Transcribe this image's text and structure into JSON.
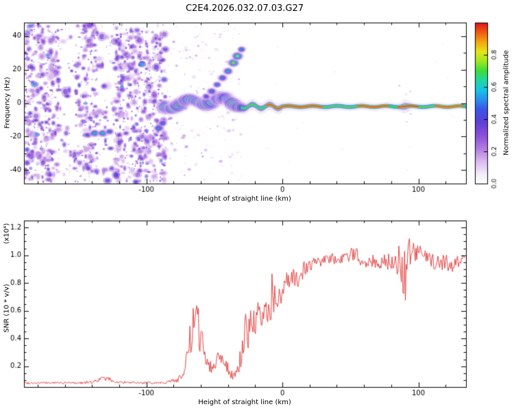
{
  "figure": {
    "title": "C2E4.2026.032.07.03.G27"
  },
  "chart_data": [
    {
      "type": "heatmap",
      "panel": "spectrogram",
      "xlabel": "Height of straight line (km)",
      "ylabel": "Frequency (Hz)",
      "xlim": [
        -190,
        135
      ],
      "ylim": [
        -48,
        48
      ],
      "xticks": [
        -100,
        0,
        100
      ],
      "xtick_minor_step": 20,
      "yticks": [
        -40,
        -20,
        0,
        20,
        40
      ],
      "ytick_minor_step": 10,
      "colorbar": {
        "label": "Normalized spectral amplitude",
        "tick_values": [
          0,
          0.2,
          0.4,
          0.6,
          0.8
        ],
        "vmin": 0,
        "vmax": 1
      },
      "colormap_stops": [
        [
          0.0,
          "#ffffff"
        ],
        [
          0.06,
          "#f3ecfa"
        ],
        [
          0.14,
          "#d9b8ef"
        ],
        [
          0.22,
          "#b07ae0"
        ],
        [
          0.3,
          "#8a4fd8"
        ],
        [
          0.38,
          "#5f3fd8"
        ],
        [
          0.46,
          "#3a55e8"
        ],
        [
          0.52,
          "#2a8df0"
        ],
        [
          0.58,
          "#15c4e8"
        ],
        [
          0.64,
          "#1fd8a0"
        ],
        [
          0.7,
          "#3ade3a"
        ],
        [
          0.76,
          "#a0e81e"
        ],
        [
          0.82,
          "#e6e414"
        ],
        [
          0.88,
          "#f5a410"
        ],
        [
          0.94,
          "#ee5b10"
        ],
        [
          1.0,
          "#e0101c"
        ]
      ],
      "features": {
        "noise_field": {
          "x_range": [
            -190,
            -86
          ],
          "count": 1600,
          "light_bands": [
            [
              -164,
              -152
            ],
            [
              -136,
              -123
            ]
          ]
        },
        "sparse_field": {
          "x_range": [
            -86,
            -30
          ],
          "count": 180
        },
        "far_sparse": {
          "x_range": [
            -30,
            135
          ],
          "count": 28
        },
        "low_trail_blobs": [
          [
            -143,
            -19,
            0.5,
            3.0
          ],
          [
            -138,
            -18,
            0.68,
            3.5
          ],
          [
            -132,
            -18,
            0.7,
            3.5
          ],
          [
            -127,
            -17,
            0.55,
            3.0
          ],
          [
            -120,
            -19,
            0.45,
            2.5
          ],
          [
            -115,
            -18,
            0.4,
            2.5
          ],
          [
            -91,
            -15,
            0.6,
            3.5
          ],
          [
            -88,
            -12,
            0.55,
            3.0
          ]
        ],
        "diagonal_blobs": [
          [
            -56,
            4,
            0.5,
            3.0
          ],
          [
            -52,
            7,
            0.55,
            3.5
          ],
          [
            -48,
            11,
            0.6,
            3.0
          ],
          [
            -44,
            15,
            0.55,
            3.5
          ],
          [
            -40,
            19,
            0.65,
            3.5
          ],
          [
            -36,
            24,
            0.85,
            4.0
          ],
          [
            -33,
            28,
            0.8,
            4.0
          ],
          [
            -30,
            32,
            0.6,
            3.0
          ]
        ],
        "main_chain": {
          "x_range": [
            -86,
            -30
          ],
          "step": 2.0,
          "wiggle": [
            2.2,
            1.5
          ],
          "core_range": [
            0.55,
            0.95
          ],
          "size_range": [
            3.5,
            6.5
          ]
        },
        "signal_line": {
          "x_range": [
            -30,
            135
          ],
          "freq": -2,
          "core_segments": [
            [
              -30,
              -12,
              0.72
            ],
            [
              -12,
              30,
              0.95
            ],
            [
              30,
              55,
              0.72
            ],
            [
              55,
              78,
              0.95
            ],
            [
              78,
              85,
              0.7
            ],
            [
              85,
              100,
              0.96
            ],
            [
              100,
              112,
              0.72
            ],
            [
              112,
              133,
              0.94
            ],
            [
              133,
              135,
              0.7
            ]
          ],
          "bump_center": 90,
          "bump_halo": 5
        },
        "bump_dots": {
          "center": 90,
          "spread": 5,
          "count": 14
        }
      }
    },
    {
      "type": "line",
      "panel": "snr",
      "series": [
        {
          "name": "SNR",
          "color": "#e03131"
        }
      ],
      "xlabel": "Height of straight line (km)",
      "ylabel": "SNR (10 * v/v)",
      "scale_label": "(x10⁴)",
      "xlim": [
        -190,
        135
      ],
      "ylim": [
        0.05,
        1.25
      ],
      "xticks": [
        -100,
        0,
        100
      ],
      "xtick_minor_step": 20,
      "yticks": [
        0.2,
        0.4,
        0.6,
        0.8,
        1.0,
        1.2
      ],
      "ytick_minor_step": 0.05,
      "x": [
        -190,
        -170,
        -150,
        -140,
        -133,
        -128,
        -122,
        -110,
        -95,
        -85,
        -78,
        -72,
        -68,
        -65,
        -63,
        -60,
        -57,
        -54,
        -51,
        -48,
        -45,
        -42,
        -39,
        -36,
        -33,
        -30,
        -27,
        -24,
        -21,
        -18,
        -15,
        -12,
        -9,
        -7,
        -5,
        -3,
        -1,
        2,
        5,
        8,
        12,
        16,
        20,
        25,
        30,
        35,
        40,
        45,
        50,
        55,
        58,
        62,
        66,
        70,
        75,
        80,
        85,
        88,
        91,
        94,
        97,
        100,
        105,
        110,
        115,
        120,
        125,
        130,
        134
      ],
      "y": [
        0.08,
        0.08,
        0.08,
        0.085,
        0.11,
        0.11,
        0.085,
        0.08,
        0.08,
        0.085,
        0.1,
        0.15,
        0.35,
        0.5,
        0.55,
        0.4,
        0.3,
        0.22,
        0.18,
        0.26,
        0.28,
        0.24,
        0.16,
        0.13,
        0.15,
        0.3,
        0.45,
        0.5,
        0.5,
        0.55,
        0.52,
        0.6,
        0.65,
        0.75,
        0.65,
        0.68,
        0.7,
        0.75,
        0.8,
        0.82,
        0.85,
        0.9,
        0.93,
        0.95,
        0.96,
        0.97,
        0.98,
        0.97,
        1.0,
        1.02,
        0.97,
        0.95,
        0.96,
        0.94,
        0.95,
        0.96,
        0.95,
        0.9,
        0.95,
        1.0,
        1.0,
        1.02,
        0.98,
        0.96,
        0.94,
        0.95,
        0.92,
        0.97,
        1.0
      ],
      "noise": [
        0.008,
        0.008,
        0.008,
        0.01,
        0.015,
        0.015,
        0.01,
        0.008,
        0.008,
        0.01,
        0.02,
        0.05,
        0.18,
        0.15,
        0.12,
        0.15,
        0.1,
        0.06,
        0.05,
        0.07,
        0.06,
        0.06,
        0.04,
        0.03,
        0.05,
        0.12,
        0.15,
        0.15,
        0.12,
        0.12,
        0.1,
        0.1,
        0.15,
        0.18,
        0.1,
        0.08,
        0.1,
        0.1,
        0.12,
        0.1,
        0.08,
        0.06,
        0.05,
        0.04,
        0.04,
        0.04,
        0.04,
        0.04,
        0.05,
        0.06,
        0.05,
        0.04,
        0.05,
        0.05,
        0.06,
        0.06,
        0.1,
        0.25,
        0.3,
        0.15,
        0.08,
        0.06,
        0.06,
        0.05,
        0.06,
        0.06,
        0.05,
        0.05,
        0.04
      ]
    }
  ]
}
